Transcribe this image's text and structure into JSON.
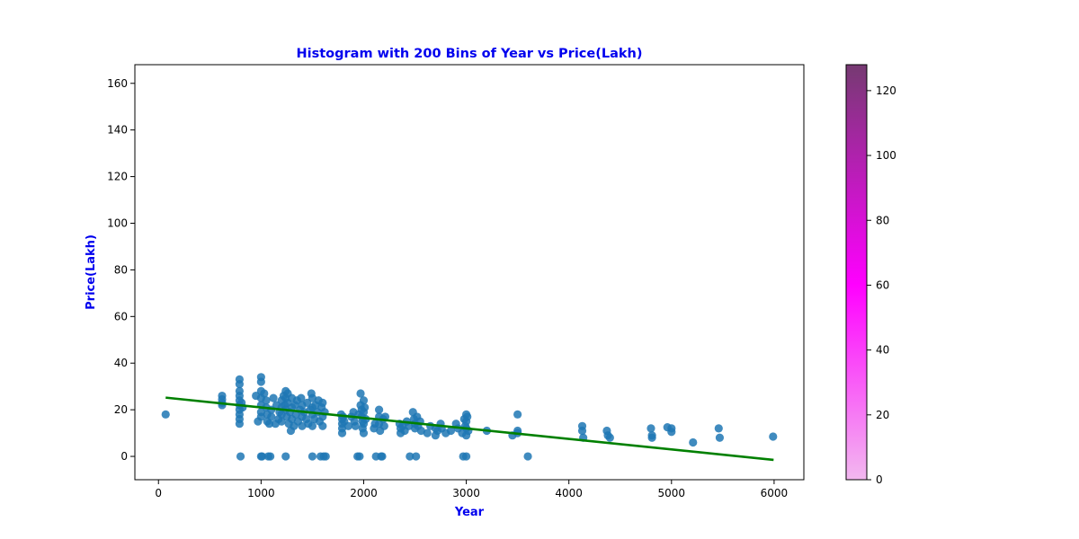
{
  "chart_data": {
    "type": "scatter",
    "title": "Histogram with 200 Bins of Year vs Price(Lakh)",
    "xlabel": "Year",
    "ylabel": "Price(Lakh)",
    "xlim": [
      -230,
      6290
    ],
    "ylim": [
      -10,
      168
    ],
    "xticks": [
      0,
      1000,
      2000,
      3000,
      4000,
      5000,
      6000
    ],
    "yticks": [
      0,
      20,
      40,
      60,
      80,
      100,
      120,
      140,
      160
    ],
    "grid": false,
    "colors": {
      "title": "#0000ee",
      "axis_label": "#0000ee",
      "points": "#1f77b4",
      "regression": "#008000"
    },
    "regression_line": {
      "x": [
        70,
        5995
      ],
      "y": [
        25.2,
        -1.5
      ]
    },
    "points": [
      [
        70,
        18
      ],
      [
        620,
        26
      ],
      [
        620,
        24.5
      ],
      [
        620,
        23
      ],
      [
        620,
        22
      ],
      [
        790,
        33
      ],
      [
        790,
        31
      ],
      [
        790,
        28
      ],
      [
        790,
        26
      ],
      [
        790,
        24
      ],
      [
        790,
        22
      ],
      [
        790,
        20
      ],
      [
        790,
        18
      ],
      [
        790,
        16
      ],
      [
        790,
        14
      ],
      [
        800,
        0
      ],
      [
        810,
        23
      ],
      [
        820,
        21
      ],
      [
        950,
        26
      ],
      [
        970,
        15
      ],
      [
        1000,
        34
      ],
      [
        1000,
        32
      ],
      [
        1000,
        28
      ],
      [
        1000,
        25
      ],
      [
        1000,
        22
      ],
      [
        1000,
        19
      ],
      [
        1000,
        17
      ],
      [
        1000,
        0
      ],
      [
        1010,
        0
      ],
      [
        1030,
        27
      ],
      [
        1050,
        24
      ],
      [
        1050,
        21
      ],
      [
        1060,
        18
      ],
      [
        1060,
        15
      ],
      [
        1070,
        0
      ],
      [
        1080,
        14
      ],
      [
        1090,
        0
      ],
      [
        1100,
        20
      ],
      [
        1100,
        17
      ],
      [
        1120,
        25
      ],
      [
        1140,
        14
      ],
      [
        1150,
        22
      ],
      [
        1170,
        16
      ],
      [
        1180,
        19
      ],
      [
        1200,
        24
      ],
      [
        1200,
        21
      ],
      [
        1200,
        18
      ],
      [
        1200,
        15
      ],
      [
        1220,
        26
      ],
      [
        1230,
        22
      ],
      [
        1240,
        28
      ],
      [
        1240,
        25
      ],
      [
        1240,
        20
      ],
      [
        1240,
        0
      ],
      [
        1250,
        17
      ],
      [
        1260,
        27
      ],
      [
        1260,
        23
      ],
      [
        1270,
        14
      ],
      [
        1280,
        19
      ],
      [
        1290,
        11
      ],
      [
        1300,
        25
      ],
      [
        1300,
        21
      ],
      [
        1300,
        16
      ],
      [
        1320,
        13
      ],
      [
        1330,
        22
      ],
      [
        1340,
        18
      ],
      [
        1350,
        24
      ],
      [
        1360,
        15
      ],
      [
        1380,
        20
      ],
      [
        1390,
        25
      ],
      [
        1400,
        22
      ],
      [
        1400,
        17
      ],
      [
        1400,
        13
      ],
      [
        1420,
        19
      ],
      [
        1440,
        16
      ],
      [
        1450,
        23
      ],
      [
        1460,
        14
      ],
      [
        1480,
        20
      ],
      [
        1490,
        27
      ],
      [
        1500,
        25
      ],
      [
        1500,
        21
      ],
      [
        1500,
        18
      ],
      [
        1500,
        13
      ],
      [
        1500,
        0
      ],
      [
        1520,
        16
      ],
      [
        1530,
        22
      ],
      [
        1550,
        19
      ],
      [
        1560,
        24
      ],
      [
        1570,
        15
      ],
      [
        1580,
        0
      ],
      [
        1590,
        21
      ],
      [
        1600,
        23
      ],
      [
        1600,
        17
      ],
      [
        1600,
        13
      ],
      [
        1610,
        0
      ],
      [
        1620,
        19
      ],
      [
        1630,
        0
      ],
      [
        1780,
        18
      ],
      [
        1790,
        16
      ],
      [
        1790,
        14
      ],
      [
        1790,
        12
      ],
      [
        1790,
        10
      ],
      [
        1800,
        17
      ],
      [
        1810,
        15
      ],
      [
        1850,
        13
      ],
      [
        1880,
        17
      ],
      [
        1900,
        19
      ],
      [
        1910,
        15
      ],
      [
        1920,
        13
      ],
      [
        1940,
        0
      ],
      [
        1950,
        18
      ],
      [
        1960,
        0
      ],
      [
        1970,
        27
      ],
      [
        1970,
        22
      ],
      [
        1980,
        20
      ],
      [
        1980,
        17
      ],
      [
        1990,
        15
      ],
      [
        1990,
        12
      ],
      [
        2000,
        24
      ],
      [
        2000,
        19
      ],
      [
        2000,
        14
      ],
      [
        2000,
        10
      ],
      [
        2010,
        21
      ],
      [
        2020,
        16
      ],
      [
        2100,
        12
      ],
      [
        2110,
        14
      ],
      [
        2120,
        0
      ],
      [
        2150,
        20
      ],
      [
        2150,
        17
      ],
      [
        2150,
        14
      ],
      [
        2160,
        11
      ],
      [
        2170,
        0
      ],
      [
        2180,
        0
      ],
      [
        2190,
        16
      ],
      [
        2200,
        13
      ],
      [
        2210,
        17
      ],
      [
        2350,
        14
      ],
      [
        2360,
        12
      ],
      [
        2360,
        10
      ],
      [
        2380,
        13
      ],
      [
        2400,
        11
      ],
      [
        2420,
        15
      ],
      [
        2440,
        13
      ],
      [
        2450,
        0
      ],
      [
        2480,
        19
      ],
      [
        2490,
        16
      ],
      [
        2500,
        14
      ],
      [
        2500,
        12
      ],
      [
        2510,
        0
      ],
      [
        2520,
        17
      ],
      [
        2530,
        13
      ],
      [
        2550,
        15
      ],
      [
        2560,
        11
      ],
      [
        2620,
        10
      ],
      [
        2650,
        13
      ],
      [
        2700,
        12
      ],
      [
        2700,
        9
      ],
      [
        2720,
        11
      ],
      [
        2750,
        14
      ],
      [
        2760,
        12
      ],
      [
        2800,
        10
      ],
      [
        2850,
        11
      ],
      [
        2900,
        14
      ],
      [
        2920,
        12
      ],
      [
        2960,
        10
      ],
      [
        2970,
        0
      ],
      [
        2980,
        16
      ],
      [
        2990,
        13
      ],
      [
        3000,
        18
      ],
      [
        3000,
        15
      ],
      [
        3000,
        12
      ],
      [
        3000,
        9
      ],
      [
        3000,
        0
      ],
      [
        3010,
        17
      ],
      [
        3020,
        11
      ],
      [
        3200,
        11
      ],
      [
        3450,
        9
      ],
      [
        3500,
        18
      ],
      [
        3500,
        11
      ],
      [
        3500,
        10
      ],
      [
        3600,
        0
      ],
      [
        4130,
        13
      ],
      [
        4130,
        11
      ],
      [
        4140,
        8
      ],
      [
        4370,
        11
      ],
      [
        4380,
        9
      ],
      [
        4400,
        8
      ],
      [
        4800,
        12
      ],
      [
        4810,
        9
      ],
      [
        4810,
        8
      ],
      [
        4960,
        12.5
      ],
      [
        5000,
        12
      ],
      [
        5000,
        10.5
      ],
      [
        5210,
        6
      ],
      [
        5460,
        12
      ],
      [
        5470,
        8
      ],
      [
        5990,
        8.5
      ]
    ],
    "colorbar": {
      "range": [
        0,
        128
      ],
      "ticks": [
        0,
        20,
        40,
        60,
        80,
        100,
        120
      ],
      "colors": [
        "#f2b8ef",
        "#ff00ff",
        "#763a72"
      ]
    }
  }
}
